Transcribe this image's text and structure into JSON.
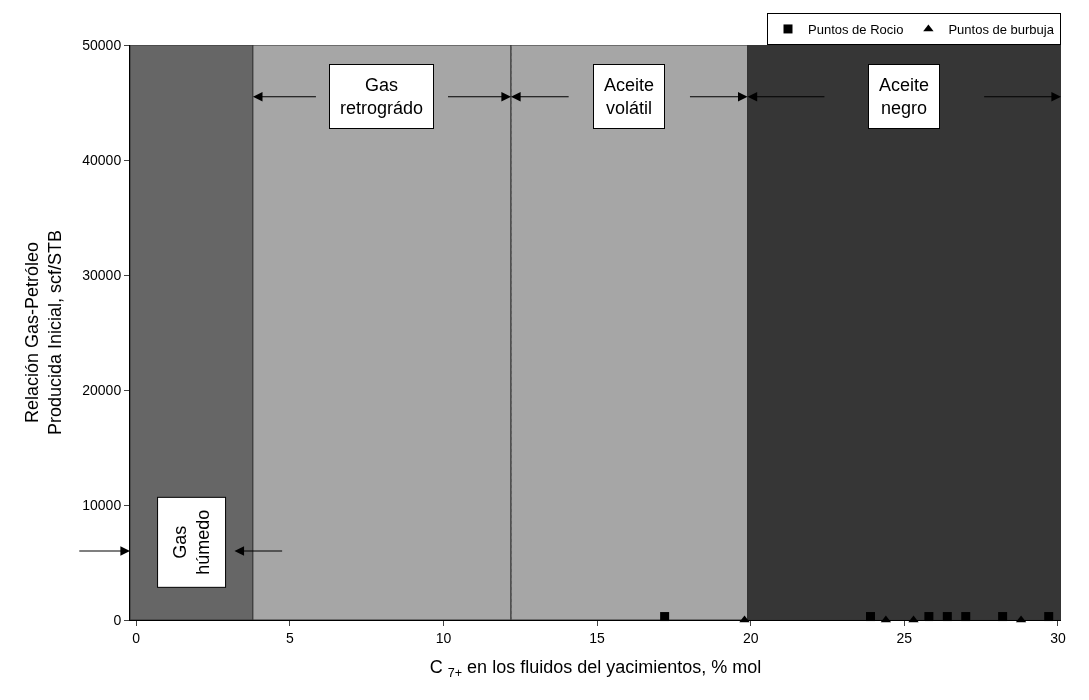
{
  "chart_data": {
    "type": "scatter",
    "xlabel": "C $_{7+}$ en los fluidos del yacimientos, % mol",
    "ylabel": "Relación Gas-Petróleo\nProducida Inicial, scf/STB",
    "xlim": [
      -0.2,
      30.1
    ],
    "xticks": [
      0,
      5,
      10,
      15,
      20,
      25,
      30
    ],
    "ylim": [
      0,
      50000
    ],
    "yticks": [
      0,
      10000,
      20000,
      30000,
      40000,
      50000
    ],
    "series": [
      {
        "name": "Puntos de Rocio",
        "color": "#000000",
        "marker": "square",
        "x": [
          17.2,
          23.9,
          25.8,
          26.4,
          27.0,
          28.2,
          29.7
        ],
        "values": [
          300,
          300,
          300,
          300,
          300,
          300,
          300
        ]
      },
      {
        "name": "Puntos de burbuja",
        "color": "#000000",
        "marker": "triangle",
        "x": [
          19.8,
          24.4,
          25.3,
          28.8
        ],
        "values": [
          0,
          0,
          0,
          0
        ]
      }
    ],
    "bands": [
      {
        "axis": "x",
        "from": -0.2,
        "to": 3.8,
        "label": "Gas\nhúmedo",
        "color": "#666666"
      },
      {
        "axis": "x",
        "from": 3.8,
        "to": 12.2,
        "label": "Gas\nretrográdo",
        "color": "#a6a6a6"
      },
      {
        "axis": "x",
        "from": 12.2,
        "to": 19.9,
        "label": "Aceite\nvolátil",
        "color": "#a6a6a6"
      },
      {
        "axis": "x",
        "from": 19.9,
        "to": 30.1,
        "label": "Aceite\nnegro",
        "color": "#363636"
      }
    ],
    "ref_lines": [
      {
        "axis": "x",
        "value": 12.2,
        "line_style": "dotted",
        "color": "#555555"
      }
    ],
    "grid": false,
    "legend": "top right"
  }
}
